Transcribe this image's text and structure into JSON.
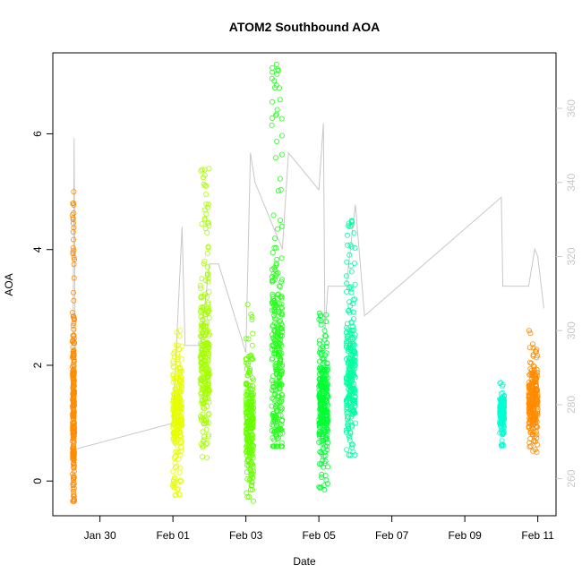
{
  "chart_data": {
    "type": "scatter",
    "title": "ATOM2 Southbound AOA",
    "xlabel": "Date",
    "ylabel": "AOA",
    "x_ticks": [
      "Jan 30",
      "Feb 01",
      "Feb 03",
      "Feb 05",
      "Feb 07",
      "Feb 09",
      "Feb 11"
    ],
    "y_ticks": [
      "0",
      "2",
      "4",
      "6"
    ],
    "y2_ticks": [
      "260",
      "280",
      "300",
      "320",
      "340",
      "360"
    ],
    "xlim": [
      "2016-01-28 17:00",
      "2016-02-11 12:00"
    ],
    "ylim": [
      -0.6,
      7.4
    ],
    "y2lim": [
      250,
      375
    ],
    "grid": false,
    "legend": "none",
    "colors": {
      "point_series": [
        "#ff8c00",
        "#e6ff00",
        "#a6ff00",
        "#66ff00",
        "#26ff1a",
        "#00ff33",
        "#00ffa0",
        "#00ffd2"
      ],
      "secondary_line": "#c8c8c8"
    },
    "series": [
      {
        "x_start": "2016-01-29 06:00",
        "x_end": "2016-01-29 07:00",
        "y_min": -0.35,
        "y_max": 5.0,
        "y_center": 1.2,
        "count": 260
      },
      {
        "x_start": "2016-02-01 00:00",
        "x_end": "2016-02-01 06:00",
        "y_min": -0.25,
        "y_max": 2.6,
        "y_center": 1.2,
        "count": 260
      },
      {
        "x_start": "2016-02-01 18:00",
        "x_end": "2016-02-02 00:00",
        "y_min": 0.4,
        "y_max": 5.4,
        "y_center": 2.0,
        "count": 260
      },
      {
        "x_start": "2016-02-03 00:00",
        "x_end": "2016-02-03 05:00",
        "y_min": -0.35,
        "y_max": 3.05,
        "y_center": 1.0,
        "count": 240
      },
      {
        "x_start": "2016-02-03 17:00",
        "x_end": "2016-02-04 00:00",
        "y_min": 0.6,
        "y_max": 7.2,
        "y_center": 2.0,
        "count": 300
      },
      {
        "x_start": "2016-02-05 00:00",
        "x_end": "2016-02-05 06:00",
        "y_min": -0.15,
        "y_max": 2.9,
        "y_center": 1.4,
        "count": 280
      },
      {
        "x_start": "2016-02-05 18:00",
        "x_end": "2016-02-06 00:00",
        "y_min": 0.45,
        "y_max": 4.5,
        "y_center": 1.7,
        "count": 260
      },
      {
        "x_start": "2016-02-09 23:00",
        "x_end": "2016-02-10 02:00",
        "y_min": 0.6,
        "y_max": 1.7,
        "y_center": 1.2,
        "count": 140
      },
      {
        "x_start": "2016-02-10 18:00",
        "x_end": "2016-02-11 00:00",
        "y_min": 0.5,
        "y_max": 2.6,
        "y_center": 1.4,
        "count": 260
      }
    ],
    "secondary_line": [
      [
        "2016-01-29 06:00",
        268
      ],
      [
        "2016-01-29 07:00",
        352
      ],
      [
        "2016-01-29 08:00",
        268
      ],
      [
        "2016-02-01 00:00",
        275
      ],
      [
        "2016-02-01 06:00",
        328
      ],
      [
        "2016-02-01 08:00",
        296
      ],
      [
        "2016-02-01 18:00",
        296
      ],
      [
        "2016-02-02 00:00",
        318
      ],
      [
        "2016-02-02 06:00",
        318
      ],
      [
        "2016-02-03 00:00",
        294
      ],
      [
        "2016-02-03 03:00",
        348
      ],
      [
        "2016-02-03 06:00",
        340
      ],
      [
        "2016-02-04 00:00",
        322
      ],
      [
        "2016-02-04 04:00",
        348
      ],
      [
        "2016-02-05 00:00",
        338
      ],
      [
        "2016-02-05 03:00",
        356
      ],
      [
        "2016-02-05 04:00",
        300
      ],
      [
        "2016-02-05 06:00",
        312
      ],
      [
        "2016-02-05 18:00",
        312
      ],
      [
        "2016-02-06 00:00",
        334
      ],
      [
        "2016-02-06 06:00",
        304
      ],
      [
        "2016-02-10 00:00",
        336
      ],
      [
        "2016-02-10 01:00",
        312
      ],
      [
        "2016-02-10 18:00",
        312
      ],
      [
        "2016-02-10 22:00",
        322
      ],
      [
        "2016-02-11 00:00",
        320
      ],
      [
        "2016-02-11 04:00",
        306
      ]
    ]
  }
}
